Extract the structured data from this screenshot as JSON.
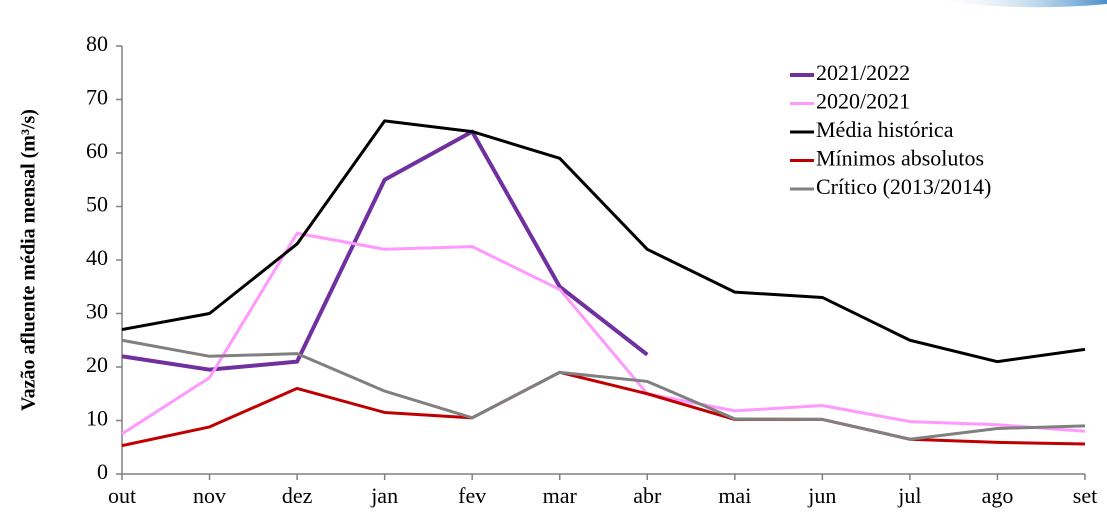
{
  "chart_data": {
    "type": "line",
    "y_label": "Vazão afluente média mensal (m³/s)",
    "categories": [
      "out",
      "nov",
      "dez",
      "jan",
      "fev",
      "mar",
      "abr",
      "mai",
      "jun",
      "jul",
      "ago",
      "set"
    ],
    "series": [
      {
        "name": "2021/2022",
        "color": "#7030a0",
        "values": [
          22,
          19.5,
          21,
          55,
          64,
          35,
          22.3,
          null,
          null,
          null,
          null,
          null
        ]
      },
      {
        "name": "2020/2021",
        "color": "#ff99ff",
        "values": [
          7.5,
          18,
          45,
          42,
          42.5,
          34.5,
          15,
          11.8,
          12.8,
          9.8,
          9.2,
          8
        ]
      },
      {
        "name": "Média histórica",
        "color": "#000000",
        "values": [
          27,
          30,
          43,
          66,
          64,
          59,
          42,
          34,
          33,
          25,
          21,
          23.3
        ]
      },
      {
        "name": "Mínimos absolutos",
        "color": "#c00000",
        "values": [
          5.3,
          8.8,
          16,
          11.5,
          10.5,
          19,
          15,
          10.2,
          10.2,
          6.5,
          5.9,
          5.6
        ]
      },
      {
        "name": "Crítico (2013/2014)",
        "color": "#808080",
        "values": [
          25,
          22,
          22.5,
          15.5,
          10.5,
          19,
          17.3,
          10.3,
          10.2,
          6.5,
          8.5,
          9
        ]
      }
    ],
    "ylim": [
      0,
      80
    ],
    "yticks": [
      0,
      10,
      20,
      30,
      40,
      50,
      60,
      70,
      80
    ],
    "grid": false,
    "legend": "upper right"
  }
}
